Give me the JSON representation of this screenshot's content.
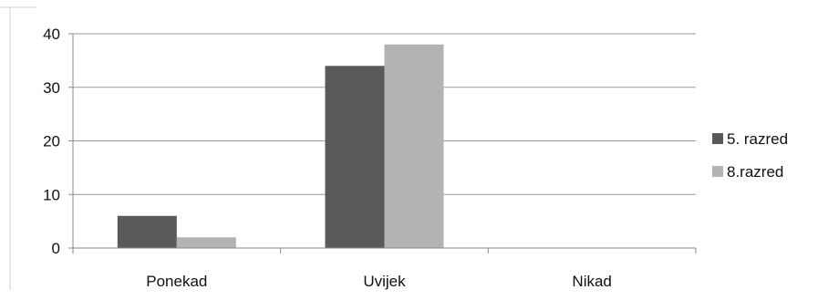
{
  "chart_data": {
    "type": "bar",
    "categories": [
      "Ponekad",
      "Uvijek",
      "Nikad"
    ],
    "series": [
      {
        "name": "5. razred",
        "values": [
          6,
          34,
          0
        ],
        "color": "#5a5a5a"
      },
      {
        "name": "8.razred",
        "values": [
          2,
          38,
          0
        ],
        "color": "#b3b3b3"
      }
    ],
    "ylim": [
      0,
      40
    ],
    "yticks": [
      0,
      10,
      20,
      30,
      40
    ],
    "yticks_labels": [
      "0",
      "10",
      "20",
      "30",
      "40"
    ],
    "grid": true,
    "legend_position": "right",
    "gridline_color": "#9a9a9a",
    "axis_color": "#8a8a8a"
  }
}
